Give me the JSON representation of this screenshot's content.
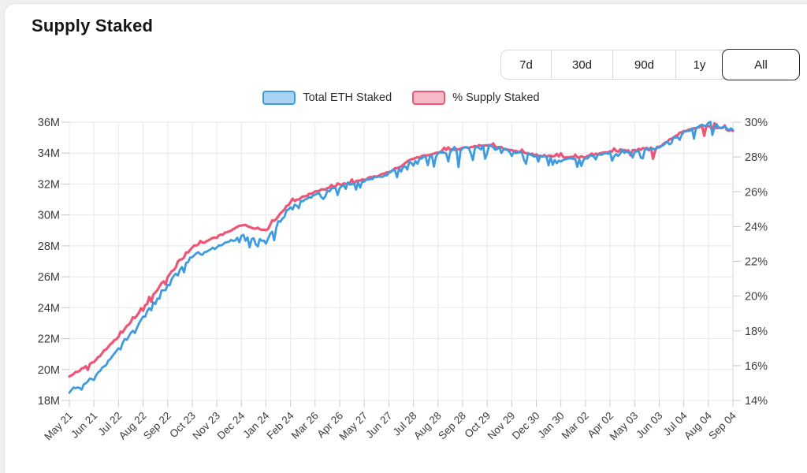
{
  "title": "Supply Staked",
  "time_range_buttons": [
    "7d",
    "30d",
    "90d",
    "1y",
    "All"
  ],
  "selected_range": "All",
  "legend": [
    {
      "label": "Total ETH Staked",
      "line_color": "#3f9be0",
      "fill_color": "#a9d2f3"
    },
    {
      "label": "% Supply Staked",
      "line_color": "#ee5677",
      "fill_color": "#f9bac7"
    }
  ],
  "colors": {
    "blue_line": "#3f9be0",
    "pink_line": "#ee5677",
    "grid": "#e8e8ea",
    "axis_tick": "#c8c8cc",
    "axis_text": "#3c3d41"
  },
  "chart_data": {
    "type": "line",
    "x": [
      "May 21",
      "Jun 21",
      "Jul 22",
      "Aug 22",
      "Sep 22",
      "Oct 23",
      "Nov 23",
      "Dec 24",
      "Jan 24",
      "Feb 24",
      "Mar 26",
      "Apr 26",
      "May 27",
      "Jun 27",
      "Jul 28",
      "Aug 28",
      "Sep 28",
      "Oct 29",
      "Nov 29",
      "Dec 30",
      "Jan 30",
      "Mar 02",
      "Apr 02",
      "May 03",
      "Jun 03",
      "Jul 04",
      "Aug 04",
      "Sep 04"
    ],
    "series": [
      {
        "name": "Total ETH Staked",
        "axis": "left",
        "unit": "M ETH",
        "color": "#3f9be0",
        "values": [
          18.6,
          19.4,
          21.4,
          23.4,
          25.5,
          27.4,
          27.9,
          28.6,
          28.3,
          30.5,
          31.3,
          31.8,
          32.2,
          32.7,
          33.5,
          34.0,
          34.3,
          34.5,
          34.1,
          33.8,
          33.6,
          33.7,
          34.0,
          34.1,
          34.4,
          35.4,
          35.9,
          35.5
        ]
      },
      {
        "name": "% Supply Staked",
        "axis": "right",
        "unit": "%",
        "color": "#ee5677",
        "values": [
          15.4,
          16.2,
          17.7,
          19.3,
          21.1,
          22.8,
          23.4,
          24.1,
          23.8,
          25.4,
          26.0,
          26.4,
          26.7,
          27.1,
          27.9,
          28.3,
          28.5,
          28.7,
          28.4,
          28.1,
          28.0,
          28.0,
          28.3,
          28.4,
          28.6,
          29.5,
          29.8,
          29.5
        ]
      }
    ],
    "left_axis": {
      "ticks": [
        "36M",
        "34M",
        "32M",
        "30M",
        "28M",
        "26M",
        "24M",
        "22M",
        "20M",
        "18M"
      ],
      "min": 18,
      "max": 36
    },
    "right_axis": {
      "ticks": [
        "30%",
        "28%",
        "26%",
        "24%",
        "22%",
        "20%",
        "18%",
        "16%",
        "14%"
      ],
      "min": 14,
      "max": 30
    },
    "grid": true,
    "legend_position": "top-center"
  }
}
